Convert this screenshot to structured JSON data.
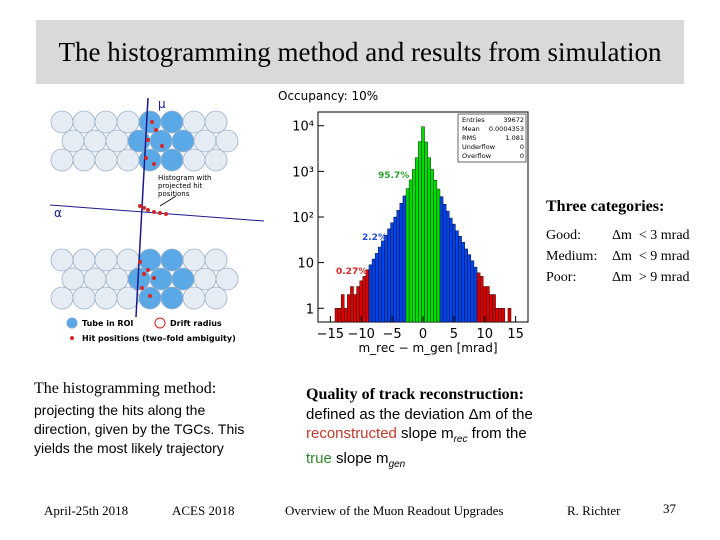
{
  "slide": {
    "title": "The histogramming method and results from simulation",
    "page_number": "37"
  },
  "diagram": {
    "mu_label": "μ",
    "alpha_label": "α",
    "annotation_line1": "Histogram with",
    "annotation_line2": "projected hit",
    "annotation_line3": "positions",
    "legend_tube": "Tube in ROI",
    "legend_drift": "Drift radius",
    "legend_hits": "Hit positions (two–fold ambiguity)"
  },
  "chart_data": {
    "type": "bar",
    "title": "Occupancy: 10%",
    "xlabel": "m_rec − m_gen [mrad]",
    "ylabel": "",
    "xlim": [
      -17,
      17
    ],
    "ylim_log": [
      0.5,
      20000
    ],
    "log_y": true,
    "x_ticks": [
      "−15",
      "−10",
      "−5",
      "0",
      "5",
      "10",
      "15"
    ],
    "y_ticks": [
      "10⁴",
      "10³",
      "10²",
      "10",
      "1"
    ],
    "stats": [
      {
        "label": "Entries",
        "value": "39672"
      },
      {
        "label": "Mean",
        "value": "0.0004353"
      },
      {
        "label": "RMS",
        "value": "1.081"
      },
      {
        "label": "Underflow",
        "value": "0"
      },
      {
        "label": "Overflow",
        "value": "0"
      }
    ],
    "annotations": [
      {
        "text": "95.7%",
        "color": "#2ca02c"
      },
      {
        "text": "2.2%",
        "color": "#1f4fd8"
      },
      {
        "text": "0.27%",
        "color": "#d62728"
      }
    ],
    "colors": {
      "good": "#00dd00",
      "medium": "#0044ee",
      "poor": "#dd0000",
      "outline": "#000000"
    },
    "bin_width": 0.5,
    "bins": [
      {
        "x": -15.0,
        "y": 0
      },
      {
        "x": -14.5,
        "y": 0
      },
      {
        "x": -14.0,
        "y": 1
      },
      {
        "x": -13.5,
        "y": 1
      },
      {
        "x": -13.0,
        "y": 2
      },
      {
        "x": -12.5,
        "y": 1
      },
      {
        "x": -12.0,
        "y": 2
      },
      {
        "x": -11.5,
        "y": 3
      },
      {
        "x": -11.0,
        "y": 2
      },
      {
        "x": -10.5,
        "y": 3
      },
      {
        "x": -10.0,
        "y": 4
      },
      {
        "x": -9.5,
        "y": 5
      },
      {
        "x": -9.0,
        "y": 7
      },
      {
        "x": -8.5,
        "y": 9
      },
      {
        "x": -8.0,
        "y": 12
      },
      {
        "x": -7.5,
        "y": 16
      },
      {
        "x": -7.0,
        "y": 22
      },
      {
        "x": -6.5,
        "y": 30
      },
      {
        "x": -6.0,
        "y": 40
      },
      {
        "x": -5.5,
        "y": 55
      },
      {
        "x": -5.0,
        "y": 75
      },
      {
        "x": -4.5,
        "y": 100
      },
      {
        "x": -4.0,
        "y": 140
      },
      {
        "x": -3.5,
        "y": 200
      },
      {
        "x": -3.0,
        "y": 290
      },
      {
        "x": -2.5,
        "y": 420
      },
      {
        "x": -2.0,
        "y": 650
      },
      {
        "x": -1.5,
        "y": 1100
      },
      {
        "x": -1.0,
        "y": 2000
      },
      {
        "x": -0.5,
        "y": 4500
      },
      {
        "x": 0.0,
        "y": 9500
      },
      {
        "x": 0.5,
        "y": 4400
      },
      {
        "x": 1.0,
        "y": 2000
      },
      {
        "x": 1.5,
        "y": 1100
      },
      {
        "x": 2.0,
        "y": 640
      },
      {
        "x": 2.5,
        "y": 410
      },
      {
        "x": 3.0,
        "y": 280
      },
      {
        "x": 3.5,
        "y": 190
      },
      {
        "x": 4.0,
        "y": 135
      },
      {
        "x": 4.5,
        "y": 95
      },
      {
        "x": 5.0,
        "y": 70
      },
      {
        "x": 5.5,
        "y": 50
      },
      {
        "x": 6.0,
        "y": 38
      },
      {
        "x": 6.5,
        "y": 28
      },
      {
        "x": 7.0,
        "y": 20
      },
      {
        "x": 7.5,
        "y": 15
      },
      {
        "x": 8.0,
        "y": 11
      },
      {
        "x": 8.5,
        "y": 8
      },
      {
        "x": 9.0,
        "y": 6
      },
      {
        "x": 9.5,
        "y": 5
      },
      {
        "x": 10.0,
        "y": 3
      },
      {
        "x": 10.5,
        "y": 3
      },
      {
        "x": 11.0,
        "y": 2
      },
      {
        "x": 11.5,
        "y": 2
      },
      {
        "x": 12.0,
        "y": 1
      },
      {
        "x": 12.5,
        "y": 1
      },
      {
        "x": 13.0,
        "y": 1
      },
      {
        "x": 13.5,
        "y": 0
      },
      {
        "x": 14.0,
        "y": 1
      },
      {
        "x": 14.5,
        "y": 0
      }
    ]
  },
  "categories": {
    "title": "Three categories:",
    "items": [
      {
        "name": "Good:",
        "cond": "Δm  < 3 mrad"
      },
      {
        "name": "Medium:",
        "cond": "Δm  < 9 mrad"
      },
      {
        "name": "Poor:",
        "cond": "Δm  > 9 mrad"
      }
    ]
  },
  "method": {
    "heading": "The histogramming method:",
    "text": "projecting the hits along the direction, given by the TGCs. This yields the most likely trajectory"
  },
  "quality": {
    "heading": "Quality of track reconstruction:",
    "text_a": "defined as the deviation Δm of the",
    "text_red": "reconstructed",
    "text_b": " slope m",
    "sub_rec": "rec",
    "text_c": " from the",
    "text_green": "true",
    "text_d": " slope m",
    "sub_gen": "gen"
  },
  "footer": {
    "date": "April-25th 2018",
    "event": "ACES 2018",
    "talk": "Overview of the Muon Readout Upgrades",
    "author": "R. Richter"
  }
}
